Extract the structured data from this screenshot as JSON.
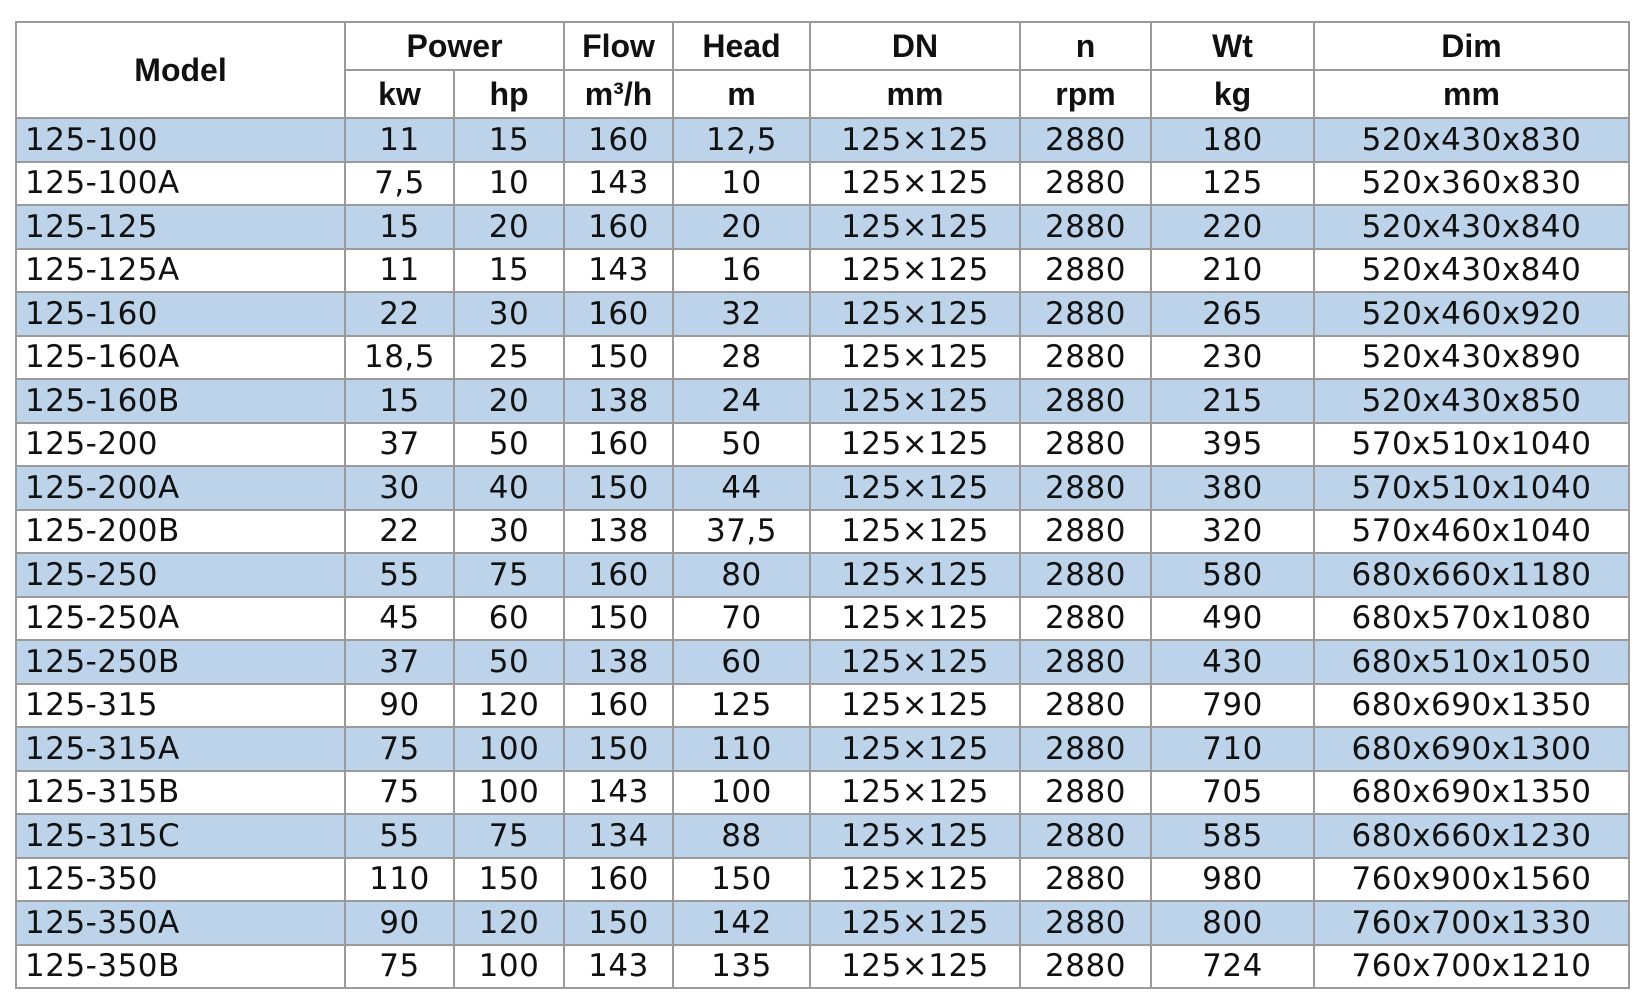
{
  "header": {
    "model": "Model",
    "groups": [
      "Power",
      "Flow",
      "Head",
      "DN",
      "n",
      "Wt",
      "Dim"
    ],
    "units": [
      "kw",
      "hp",
      "m³/h",
      "m",
      "mm",
      "rpm",
      "kg",
      "mm"
    ]
  },
  "colors": {
    "row_highlight": "#bcd3ea",
    "border": "#9a9a9a"
  },
  "rows": [
    [
      "125-100",
      "11",
      "15",
      "160",
      "12,5",
      "125×125",
      "2880",
      "180",
      "520x430x830"
    ],
    [
      "125-100A",
      "7,5",
      "10",
      "143",
      "10",
      "125×125",
      "2880",
      "125",
      "520x360x830"
    ],
    [
      "125-125",
      "15",
      "20",
      "160",
      "20",
      "125×125",
      "2880",
      "220",
      "520x430x840"
    ],
    [
      "125-125A",
      "11",
      "15",
      "143",
      "16",
      "125×125",
      "2880",
      "210",
      "520x430x840"
    ],
    [
      "125-160",
      "22",
      "30",
      "160",
      "32",
      "125×125",
      "2880",
      "265",
      "520x460x920"
    ],
    [
      "125-160A",
      "18,5",
      "25",
      "150",
      "28",
      "125×125",
      "2880",
      "230",
      "520x430x890"
    ],
    [
      "125-160B",
      "15",
      "20",
      "138",
      "24",
      "125×125",
      "2880",
      "215",
      "520x430x850"
    ],
    [
      "125-200",
      "37",
      "50",
      "160",
      "50",
      "125×125",
      "2880",
      "395",
      "570x510x1040"
    ],
    [
      "125-200A",
      "30",
      "40",
      "150",
      "44",
      "125×125",
      "2880",
      "380",
      "570x510x1040"
    ],
    [
      "125-200B",
      "22",
      "30",
      "138",
      "37,5",
      "125×125",
      "2880",
      "320",
      "570x460x1040"
    ],
    [
      "125-250",
      "55",
      "75",
      "160",
      "80",
      "125×125",
      "2880",
      "580",
      "680x660x1180"
    ],
    [
      "125-250A",
      "45",
      "60",
      "150",
      "70",
      "125×125",
      "2880",
      "490",
      "680x570x1080"
    ],
    [
      "125-250B",
      "37",
      "50",
      "138",
      "60",
      "125×125",
      "2880",
      "430",
      "680x510x1050"
    ],
    [
      "125-315",
      "90",
      "120",
      "160",
      "125",
      "125×125",
      "2880",
      "790",
      "680x690x1350"
    ],
    [
      "125-315A",
      "75",
      "100",
      "150",
      "110",
      "125×125",
      "2880",
      "710",
      "680x690x1300"
    ],
    [
      "125-315B",
      "75",
      "100",
      "143",
      "100",
      "125×125",
      "2880",
      "705",
      "680x690x1350"
    ],
    [
      "125-315C",
      "55",
      "75",
      "134",
      "88",
      "125×125",
      "2880",
      "585",
      "680x660x1230"
    ],
    [
      "125-350",
      "110",
      "150",
      "160",
      "150",
      "125×125",
      "2880",
      "980",
      "760x900x1560"
    ],
    [
      "125-350A",
      "90",
      "120",
      "150",
      "142",
      "125×125",
      "2880",
      "800",
      "760x700x1330"
    ],
    [
      "125-350B",
      "75",
      "100",
      "143",
      "135",
      "125×125",
      "2880",
      "724",
      "760x700x1210"
    ]
  ]
}
